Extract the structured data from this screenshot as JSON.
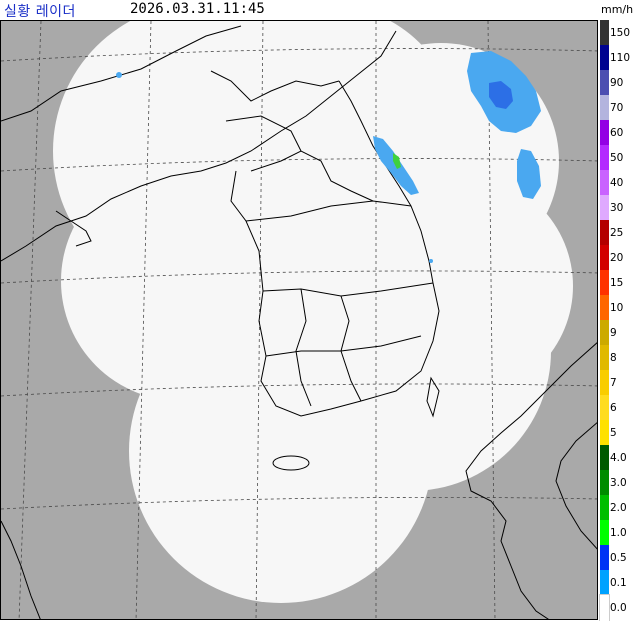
{
  "header": {
    "title": "실황 레이더",
    "timestamp": "2026.03.31.11:45",
    "unit": "mm/h"
  },
  "legend": {
    "labels": [
      "150",
      "110",
      "90",
      "70",
      "60",
      "50",
      "40",
      "30",
      "25",
      "20",
      "15",
      "10",
      "9",
      "8",
      "7",
      "6",
      "5",
      "4.0",
      "3.0",
      "2.0",
      "1.0",
      "0.5",
      "0.1",
      "0.0"
    ],
    "colors": [
      "#333333",
      "#000390",
      "#4c4eb1",
      "#b3b4de",
      "#9300e4",
      "#b329ff",
      "#c963ff",
      "#dfa9ff",
      "#b40000",
      "#d20000",
      "#ff3200",
      "#ff6600",
      "#ccaa00",
      "#e0b900",
      "#f9cd00",
      "#ffdc1f",
      "#ffe100",
      "#005a00",
      "#008c00",
      "#00be00",
      "#00ff00",
      "#0033f5",
      "#00a2ff",
      "#ffffff"
    ]
  },
  "colors": {
    "land": "#a9a9a9",
    "coverage": "#f7f7f7",
    "echo_light": "#4aa8f0",
    "echo_medium": "#2c6fe6",
    "echo_green": "#3fd13f"
  }
}
